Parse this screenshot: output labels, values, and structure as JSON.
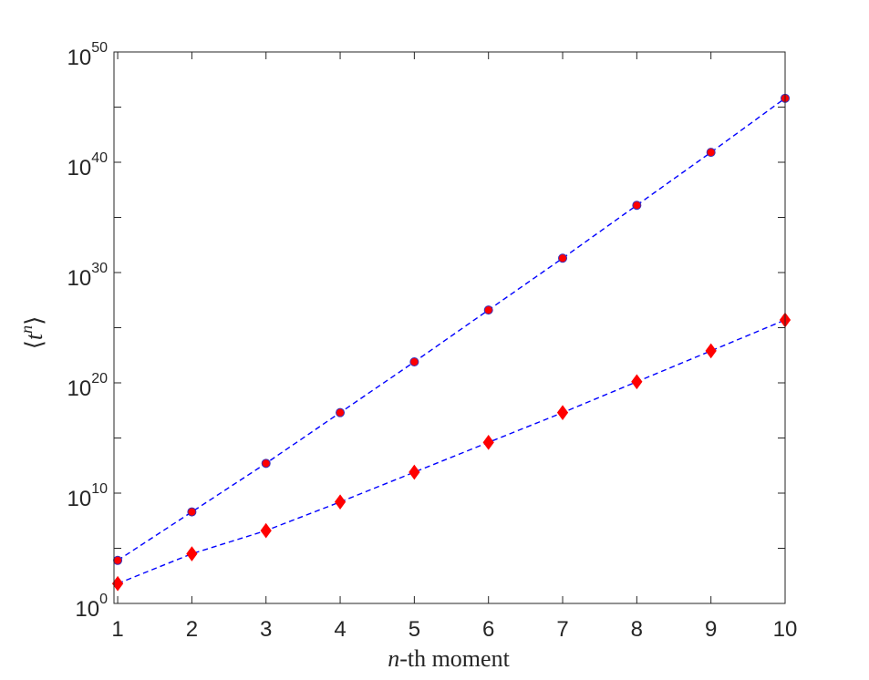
{
  "chart_data": {
    "type": "scatter",
    "title": "",
    "xlabel": {
      "var": "n",
      "rest": "-th moment"
    },
    "ylabel": {
      "left": "⟨",
      "var": "t",
      "sup": "n",
      "right": "⟩"
    },
    "x": [
      1,
      2,
      3,
      4,
      5,
      6,
      7,
      8,
      9,
      10
    ],
    "xlim": [
      0.95,
      10
    ],
    "ylim_log10": [
      0,
      50
    ],
    "yscale": "log",
    "grid": false,
    "legend": "none",
    "xticks": [
      "1",
      "2",
      "3",
      "4",
      "5",
      "6",
      "7",
      "8",
      "9",
      "10"
    ],
    "yticks": [
      {
        "base": "10",
        "exp": "0",
        "log10": 0
      },
      {
        "base": "10",
        "exp": "10",
        "log10": 10
      },
      {
        "base": "10",
        "exp": "20",
        "log10": 20
      },
      {
        "base": "10",
        "exp": "30",
        "log10": 30
      },
      {
        "base": "10",
        "exp": "40",
        "log10": 40
      },
      {
        "base": "10",
        "exp": "50",
        "log10": 50
      }
    ],
    "series": [
      {
        "marker": "circle",
        "marker_color": "#ff0000",
        "line_color": "#0000ff",
        "line_style": "dashed",
        "log10_values": [
          3.9,
          8.3,
          12.7,
          17.3,
          21.9,
          26.6,
          31.3,
          36.1,
          40.9,
          45.8
        ]
      },
      {
        "marker": "diamond",
        "marker_color": "#ff0000",
        "line_color": "#0000ff",
        "line_style": "dashed",
        "log10_values": [
          1.8,
          4.5,
          6.6,
          9.2,
          11.9,
          14.6,
          17.3,
          20.1,
          22.9,
          25.7
        ]
      }
    ]
  }
}
